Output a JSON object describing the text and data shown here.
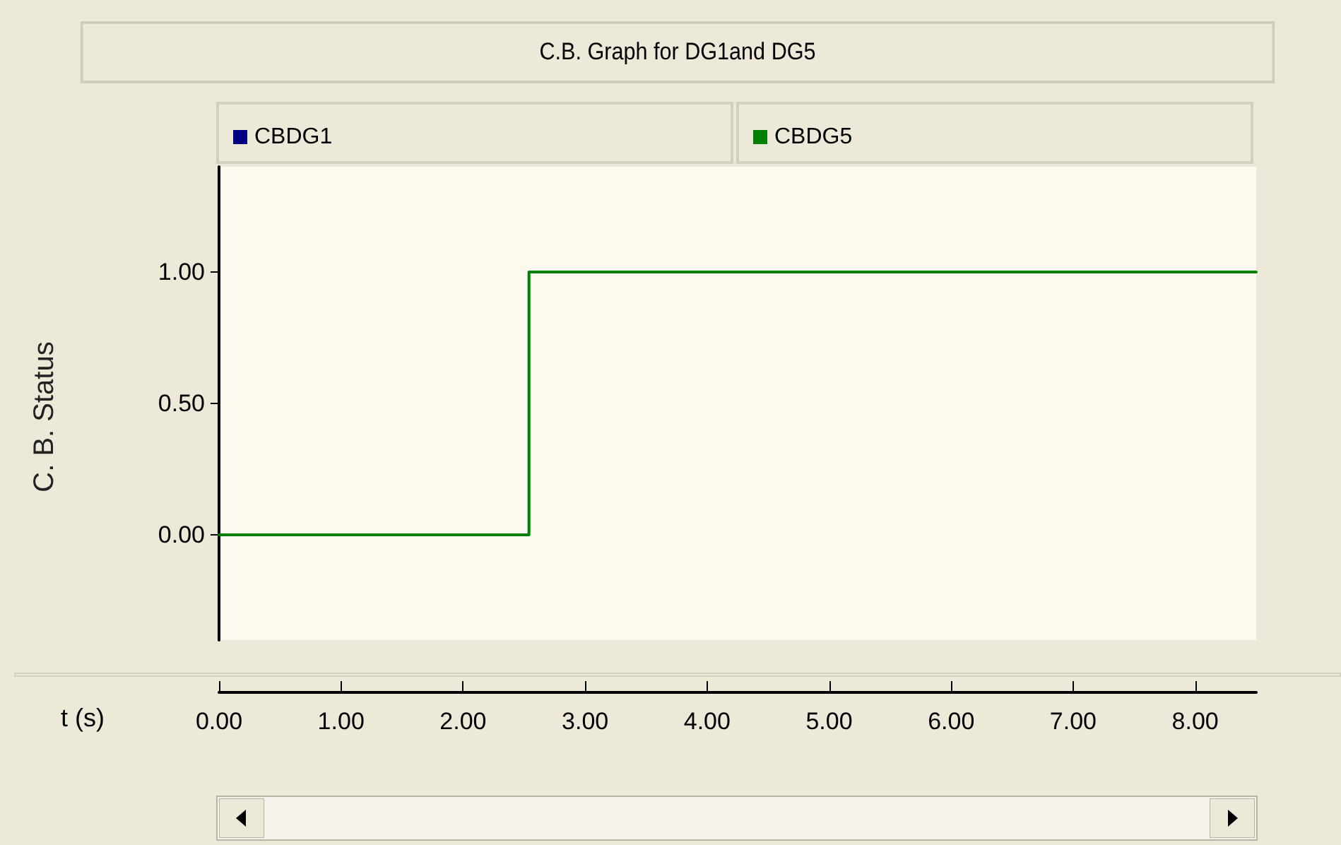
{
  "chart_data": {
    "type": "step",
    "title": "C.B. Graph for DG1and DG5",
    "xlabel": "t (s)",
    "ylabel": "C. B. Status",
    "series": [
      {
        "name": "CBDG1",
        "color": "#000080"
      },
      {
        "name": "CBDG5",
        "color": "#008000",
        "x": [
          0,
          2.54,
          8.5
        ],
        "values": [
          0,
          1,
          1
        ]
      }
    ],
    "xlim": [
      0,
      8.5
    ],
    "ylim": [
      -0.4,
      1.4
    ],
    "xticks": [
      {
        "value": 0,
        "label": "0.00"
      },
      {
        "value": 1,
        "label": "1.00"
      },
      {
        "value": 2,
        "label": "2.00"
      },
      {
        "value": 3,
        "label": "3.00"
      },
      {
        "value": 4,
        "label": "4.00"
      },
      {
        "value": 5,
        "label": "5.00"
      },
      {
        "value": 6,
        "label": "6.00"
      },
      {
        "value": 7,
        "label": "7.00"
      },
      {
        "value": 8,
        "label": "8.00"
      }
    ],
    "yticks": [
      {
        "value": 0,
        "label": "0.00"
      },
      {
        "value": 0.5,
        "label": "0.50"
      },
      {
        "value": 1,
        "label": "1.00"
      }
    ],
    "grid": false,
    "legend": "top",
    "marker": "none",
    "line_style": "solid"
  }
}
